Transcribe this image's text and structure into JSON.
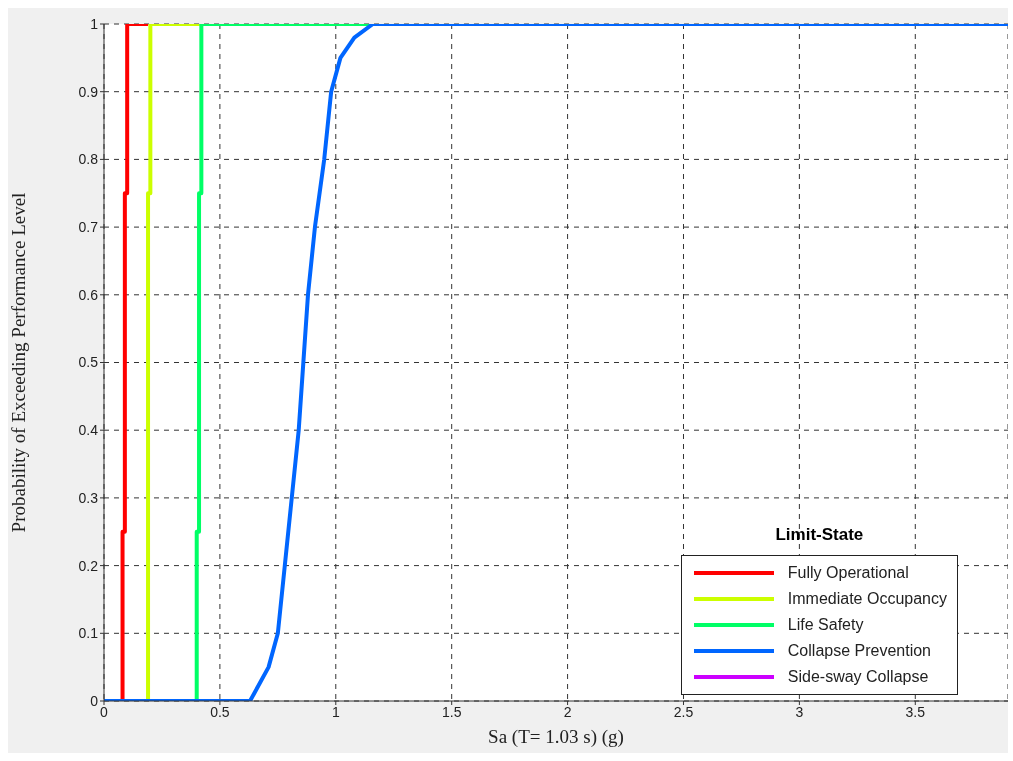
{
  "chart_data": {
    "type": "line",
    "xlabel": "Sa (T= 1.03 s) (g)",
    "ylabel": "Probability of Exceeding Performance Level",
    "legend_title": "Limit-State",
    "xlim": [
      0,
      3.9
    ],
    "xticks": [
      0,
      0.5,
      1,
      1.5,
      2,
      2.5,
      3,
      3.5
    ],
    "ylim": [
      0,
      1
    ],
    "yticks": [
      0,
      0.1,
      0.2,
      0.3,
      0.4,
      0.5,
      0.6,
      0.7,
      0.8,
      0.9,
      1
    ],
    "grid": true,
    "legend": "bottom right",
    "marker": "none",
    "line_style": "solid",
    "series": [
      {
        "name": "Fully Operational",
        "color": "#ff0000",
        "x": [
          0.08,
          0.08,
          0.09,
          0.09,
          0.1,
          0.1,
          0.19
        ],
        "values": [
          0,
          0.25,
          0.25,
          0.75,
          0.75,
          1,
          1
        ]
      },
      {
        "name": "Immediate Occupancy",
        "color": "#ccff00",
        "x": [
          0.19,
          0.19,
          0.19,
          0.19,
          0.2,
          0.2,
          0.42
        ],
        "values": [
          0,
          0.25,
          0.25,
          0.75,
          0.75,
          1,
          1
        ]
      },
      {
        "name": "Life Safety",
        "color": "#00ff66",
        "x": [
          0.4,
          0.4,
          0.41,
          0.41,
          0.42,
          0.42,
          1.16
        ],
        "values": [
          0,
          0.25,
          0.25,
          0.75,
          0.75,
          1,
          1
        ]
      },
      {
        "name": "Collapse Prevention",
        "color": "#0066ff",
        "x": [
          0,
          0.63,
          0.71,
          0.75,
          0.78,
          0.81,
          0.84,
          0.86,
          0.88,
          0.91,
          0.95,
          0.98,
          1.02,
          1.08,
          1.16,
          3.9
        ],
        "values": [
          0,
          0,
          0.05,
          0.1,
          0.2,
          0.3,
          0.4,
          0.5,
          0.6,
          0.7,
          0.8,
          0.9,
          0.95,
          0.98,
          1,
          1
        ]
      },
      {
        "name": "Side-sway Collapse",
        "color": "#cc00ff"
      }
    ]
  }
}
